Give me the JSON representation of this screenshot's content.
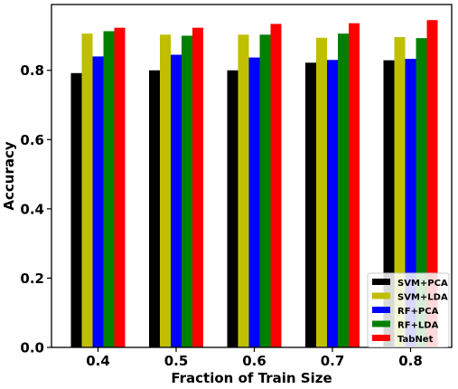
{
  "chart_data": {
    "type": "bar",
    "title": "",
    "xlabel": "Fraction of Train Size",
    "ylabel": "Accuracy",
    "categories": [
      "0.4",
      "0.5",
      "0.6",
      "0.7",
      "0.8"
    ],
    "ylim": [
      0,
      0.99
    ],
    "yticks": [
      "0.0",
      "0.2",
      "0.4",
      "0.6",
      "0.8"
    ],
    "yticks_values": [
      0.0,
      0.2,
      0.4,
      0.6,
      0.8
    ],
    "grid": false,
    "legend_position": "lower-right",
    "series": [
      {
        "name": "SVM+PCA",
        "color": "#000000",
        "values": [
          0.792,
          0.8,
          0.8,
          0.822,
          0.829
        ]
      },
      {
        "name": "SVM+LDA",
        "color": "#bfbf00",
        "values": [
          0.906,
          0.903,
          0.903,
          0.894,
          0.896
        ]
      },
      {
        "name": "RF+PCA",
        "color": "#0000ff",
        "values": [
          0.84,
          0.845,
          0.837,
          0.83,
          0.833
        ]
      },
      {
        "name": "RF+LDA",
        "color": "#008000",
        "values": [
          0.913,
          0.9,
          0.903,
          0.906,
          0.893
        ]
      },
      {
        "name": "TabNet",
        "color": "#ff0000",
        "values": [
          0.923,
          0.923,
          0.934,
          0.936,
          0.945
        ]
      }
    ]
  }
}
